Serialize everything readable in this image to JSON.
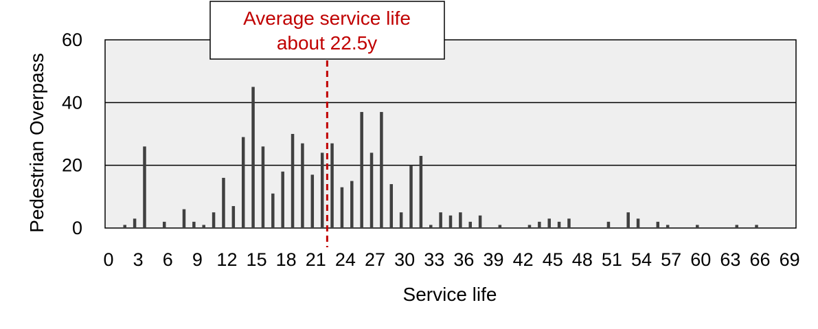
{
  "chart_data": {
    "type": "bar",
    "title": "",
    "xlabel": "Service life",
    "ylabel": "Pedestrian Overpass",
    "xlim": [
      0,
      70
    ],
    "ylim": [
      0,
      60
    ],
    "x_ticks": [
      0,
      3,
      6,
      9,
      12,
      15,
      18,
      21,
      24,
      27,
      30,
      33,
      36,
      39,
      42,
      45,
      48,
      51,
      54,
      57,
      60,
      63,
      66,
      69
    ],
    "y_ticks": [
      0,
      20,
      40,
      60
    ],
    "grid": "horizontal",
    "plot_background": "#efefef",
    "bar_color": "#404040",
    "bars": [
      {
        "x": 2,
        "y": 1
      },
      {
        "x": 3,
        "y": 3
      },
      {
        "x": 4,
        "y": 26
      },
      {
        "x": 6,
        "y": 2
      },
      {
        "x": 8,
        "y": 6
      },
      {
        "x": 9,
        "y": 2
      },
      {
        "x": 10,
        "y": 1
      },
      {
        "x": 11,
        "y": 5
      },
      {
        "x": 12,
        "y": 16
      },
      {
        "x": 13,
        "y": 7
      },
      {
        "x": 14,
        "y": 29
      },
      {
        "x": 15,
        "y": 45
      },
      {
        "x": 16,
        "y": 26
      },
      {
        "x": 17,
        "y": 11
      },
      {
        "x": 18,
        "y": 18
      },
      {
        "x": 19,
        "y": 30
      },
      {
        "x": 20,
        "y": 27
      },
      {
        "x": 21,
        "y": 17
      },
      {
        "x": 22,
        "y": 24
      },
      {
        "x": 23,
        "y": 27
      },
      {
        "x": 24,
        "y": 13
      },
      {
        "x": 25,
        "y": 15
      },
      {
        "x": 26,
        "y": 37
      },
      {
        "x": 27,
        "y": 24
      },
      {
        "x": 28,
        "y": 37
      },
      {
        "x": 29,
        "y": 14
      },
      {
        "x": 30,
        "y": 5
      },
      {
        "x": 31,
        "y": 20
      },
      {
        "x": 32,
        "y": 23
      },
      {
        "x": 33,
        "y": 1
      },
      {
        "x": 34,
        "y": 5
      },
      {
        "x": 35,
        "y": 4
      },
      {
        "x": 36,
        "y": 5
      },
      {
        "x": 37,
        "y": 2
      },
      {
        "x": 38,
        "y": 4
      },
      {
        "x": 40,
        "y": 1
      },
      {
        "x": 43,
        "y": 1
      },
      {
        "x": 44,
        "y": 2
      },
      {
        "x": 45,
        "y": 3
      },
      {
        "x": 46,
        "y": 2
      },
      {
        "x": 47,
        "y": 3
      },
      {
        "x": 51,
        "y": 2
      },
      {
        "x": 53,
        "y": 5
      },
      {
        "x": 54,
        "y": 3
      },
      {
        "x": 56,
        "y": 2
      },
      {
        "x": 57,
        "y": 1
      },
      {
        "x": 60,
        "y": 1
      },
      {
        "x": 64,
        "y": 1
      },
      {
        "x": 66,
        "y": 1
      }
    ],
    "reference_line": {
      "x": 22.5,
      "color": "#c00000",
      "style": "dashed",
      "label_lines": [
        "Average service life",
        "about 22.5y"
      ]
    }
  }
}
